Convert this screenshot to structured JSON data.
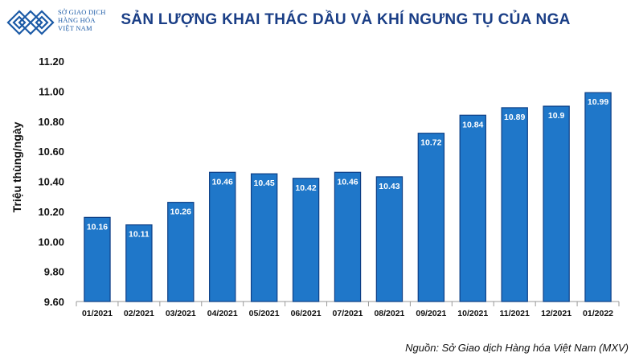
{
  "logo": {
    "line1": "SỞ GIAO DỊCH",
    "line2": "HÀNG HÓA",
    "line3": "VIỆT NAM",
    "color": "#1b5aa6"
  },
  "source": "Nguồn: Sở Giao dịch Hàng hóa Việt Nam (MXV)",
  "chart_data": {
    "type": "bar",
    "title": "SẢN LƯỢNG KHAI THÁC DẦU VÀ KHÍ NGƯNG TỤ CỦA NGA",
    "xlabel": "",
    "ylabel": "Triệu thùng/ngày",
    "ylim": [
      9.6,
      11.2
    ],
    "yticks": [
      "9.60",
      "9.80",
      "10.00",
      "10.20",
      "10.40",
      "10.60",
      "10.80",
      "11.00",
      "11.20"
    ],
    "categories": [
      "01/2021",
      "02/2021",
      "03/2021",
      "04/2021",
      "05/2021",
      "06/2021",
      "07/2021",
      "08/2021",
      "09/2021",
      "10/2021",
      "11/2021",
      "12/2021",
      "01/2022"
    ],
    "values": [
      10.16,
      10.11,
      10.26,
      10.46,
      10.45,
      10.42,
      10.46,
      10.43,
      10.72,
      10.84,
      10.89,
      10.9,
      10.99
    ],
    "value_labels": [
      "10.16",
      "10.11",
      "10.26",
      "10.46",
      "10.45",
      "10.42",
      "10.46",
      "10.43",
      "10.72",
      "10.84",
      "10.89",
      "10.9",
      "10.99"
    ],
    "grid": false,
    "legend": "none",
    "bar_color": "#1f77c9",
    "bar_edge_color": "#0d3f86",
    "title_color": "#1a3e86"
  }
}
